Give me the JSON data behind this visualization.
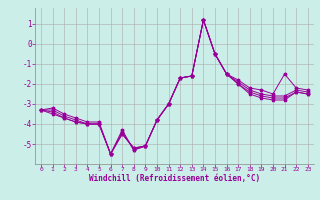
{
  "title": "",
  "xlabel": "Windchill (Refroidissement éolien,°C)",
  "bg_color": "#cceee8",
  "line_color": "#990099",
  "grid_color": "#aaaaaa",
  "x": [
    0,
    1,
    2,
    3,
    4,
    5,
    6,
    7,
    8,
    9,
    10,
    11,
    12,
    13,
    14,
    15,
    16,
    17,
    18,
    19,
    20,
    21,
    22,
    23
  ],
  "line1": [
    -3.3,
    -3.2,
    -3.5,
    -3.7,
    -3.9,
    -3.9,
    -5.5,
    -4.3,
    -5.3,
    -5.1,
    -3.8,
    -3.0,
    -1.7,
    -1.6,
    1.2,
    -0.5,
    -1.5,
    -1.8,
    -2.2,
    -2.3,
    -2.5,
    -1.5,
    -2.2,
    -2.3
  ],
  "line2": [
    -3.3,
    -3.3,
    -3.6,
    -3.8,
    -4.0,
    -4.0,
    -5.5,
    -4.4,
    -5.3,
    -5.1,
    -3.8,
    -3.0,
    -1.7,
    -1.6,
    1.2,
    -0.5,
    -1.5,
    -1.9,
    -2.3,
    -2.5,
    -2.6,
    -2.6,
    -2.3,
    -2.4
  ],
  "line3": [
    -3.3,
    -3.4,
    -3.7,
    -3.9,
    -4.0,
    -4.0,
    -5.5,
    -4.5,
    -5.2,
    -5.1,
    -3.8,
    -3.0,
    -1.7,
    -1.6,
    1.2,
    -0.5,
    -1.5,
    -2.0,
    -2.4,
    -2.6,
    -2.7,
    -2.7,
    -2.4,
    -2.5
  ],
  "line4": [
    -3.3,
    -3.5,
    -3.7,
    -3.9,
    -4.0,
    -4.0,
    -5.5,
    -4.5,
    -5.2,
    -5.1,
    -3.8,
    -3.0,
    -1.7,
    -1.6,
    1.2,
    -0.5,
    -1.5,
    -2.0,
    -2.5,
    -2.7,
    -2.8,
    -2.8,
    -2.4,
    -2.5
  ],
  "ylim": [
    -6.0,
    1.8
  ],
  "yticks": [
    1,
    0,
    -1,
    -2,
    -3,
    -4,
    -5
  ],
  "xticks": [
    0,
    1,
    2,
    3,
    4,
    5,
    6,
    7,
    8,
    9,
    10,
    11,
    12,
    13,
    14,
    15,
    16,
    17,
    18,
    19,
    20,
    21,
    22,
    23
  ]
}
